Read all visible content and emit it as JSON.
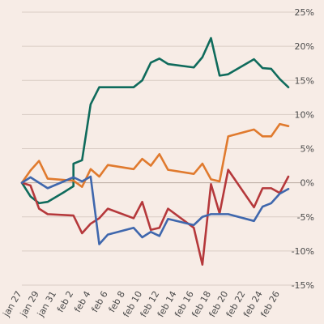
{
  "chart_data": {
    "type": "line",
    "title": "",
    "xlabel": "",
    "ylabel": "",
    "x_tick_labels": [
      "jan 27",
      "jan 29",
      "jan 31",
      "feb 2",
      "feb 4",
      "feb 6",
      "feb 8",
      "feb 10",
      "feb 12",
      "feb 14",
      "feb 16",
      "feb 18",
      "feb 20",
      "feb 22",
      "feb 24",
      "feb 26"
    ],
    "y_tick_labels": [
      "25%",
      "20%",
      "15%",
      "10%",
      "5%",
      "0%",
      "-5%",
      "-10%",
      "-15%"
    ],
    "ylim": [
      -15,
      25
    ],
    "grid": "horizontal",
    "series": [
      {
        "color": "#0f6b5c",
        "points": [
          [
            "2024-01-27",
            0
          ],
          [
            "2024-01-28",
            -2
          ],
          [
            "2024-01-29",
            -3
          ],
          [
            "2024-01-30",
            -2.8
          ],
          [
            "2024-02-01",
            -1.3
          ],
          [
            "2024-02-02",
            -0.5
          ],
          [
            "2024-02-02",
            2.8
          ],
          [
            "2024-02-03",
            3.3
          ],
          [
            "2024-02-04",
            11.5
          ],
          [
            "2024-02-05",
            14
          ],
          [
            "2024-02-07",
            14
          ],
          [
            "2024-02-09",
            14
          ],
          [
            "2024-02-10",
            15
          ],
          [
            "2024-02-11",
            17.6
          ],
          [
            "2024-02-12",
            18.2
          ],
          [
            "2024-02-13",
            17.4
          ],
          [
            "2024-02-16",
            16.9
          ],
          [
            "2024-02-17",
            18.4
          ],
          [
            "2024-02-18",
            21.2
          ],
          [
            "2024-02-19",
            15.7
          ],
          [
            "2024-02-20",
            15.9
          ],
          [
            "2024-02-23",
            18.1
          ],
          [
            "2024-02-24",
            16.8
          ],
          [
            "2024-02-25",
            16.7
          ],
          [
            "2024-02-26",
            15.2
          ],
          [
            "2024-02-27",
            14
          ]
        ]
      },
      {
        "color": "#e07a2e",
        "points": [
          [
            "2024-01-27",
            0
          ],
          [
            "2024-01-28",
            1.8
          ],
          [
            "2024-01-29",
            3.2
          ],
          [
            "2024-01-30",
            0.6
          ],
          [
            "2024-02-02",
            0.3
          ],
          [
            "2024-02-03",
            -0.6
          ],
          [
            "2024-02-04",
            2
          ],
          [
            "2024-02-05",
            0.9
          ],
          [
            "2024-02-06",
            2.6
          ],
          [
            "2024-02-09",
            2
          ],
          [
            "2024-02-10",
            3.5
          ],
          [
            "2024-02-11",
            2.5
          ],
          [
            "2024-02-12",
            4.2
          ],
          [
            "2024-02-13",
            1.9
          ],
          [
            "2024-02-16",
            1.3
          ],
          [
            "2024-02-17",
            2.8
          ],
          [
            "2024-02-18",
            0.5
          ],
          [
            "2024-02-19",
            0.2
          ],
          [
            "2024-02-20",
            6.8
          ],
          [
            "2024-02-23",
            7.8
          ],
          [
            "2024-02-24",
            6.8
          ],
          [
            "2024-02-25",
            6.8
          ],
          [
            "2024-02-26",
            8.6
          ],
          [
            "2024-02-27",
            8.3
          ]
        ]
      },
      {
        "color": "#b5383b",
        "points": [
          [
            "2024-01-27",
            0
          ],
          [
            "2024-01-28",
            -0.4
          ],
          [
            "2024-01-29",
            -3.8
          ],
          [
            "2024-01-30",
            -4.6
          ],
          [
            "2024-02-02",
            -4.8
          ],
          [
            "2024-02-03",
            -7.4
          ],
          [
            "2024-02-04",
            -6
          ],
          [
            "2024-02-05",
            -5.2
          ],
          [
            "2024-02-06",
            -3.8
          ],
          [
            "2024-02-09",
            -5.2
          ],
          [
            "2024-02-10",
            -2.8
          ],
          [
            "2024-02-11",
            -6.9
          ],
          [
            "2024-02-12",
            -6.6
          ],
          [
            "2024-02-13",
            -3.8
          ],
          [
            "2024-02-16",
            -6.6
          ],
          [
            "2024-02-17",
            -12
          ],
          [
            "2024-02-18",
            -0.2
          ],
          [
            "2024-02-19",
            -4.5
          ],
          [
            "2024-02-20",
            1.9
          ],
          [
            "2024-02-23",
            -3.6
          ],
          [
            "2024-02-24",
            -0.8
          ],
          [
            "2024-02-25",
            -0.8
          ],
          [
            "2024-02-26",
            -1.5
          ],
          [
            "2024-02-27",
            0.9
          ]
        ]
      },
      {
        "color": "#3f67ad",
        "points": [
          [
            "2024-01-27",
            0
          ],
          [
            "2024-01-28",
            0.8
          ],
          [
            "2024-01-30",
            -0.8
          ],
          [
            "2024-02-02",
            0.8
          ],
          [
            "2024-02-03",
            0.2
          ],
          [
            "2024-02-04",
            0.9
          ],
          [
            "2024-02-05",
            -9
          ],
          [
            "2024-02-06",
            -7.6
          ],
          [
            "2024-02-09",
            -6.6
          ],
          [
            "2024-02-10",
            -8
          ],
          [
            "2024-02-11",
            -7.2
          ],
          [
            "2024-02-12",
            -7.8
          ],
          [
            "2024-02-13",
            -5.3
          ],
          [
            "2024-02-16",
            -6.2
          ],
          [
            "2024-02-17",
            -5
          ],
          [
            "2024-02-18",
            -4.6
          ],
          [
            "2024-02-20",
            -4.6
          ],
          [
            "2024-02-23",
            -5.6
          ],
          [
            "2024-02-24",
            -3.5
          ],
          [
            "2024-02-25",
            -3
          ],
          [
            "2024-02-26",
            -1.6
          ],
          [
            "2024-02-27",
            -0.9
          ]
        ]
      }
    ]
  }
}
